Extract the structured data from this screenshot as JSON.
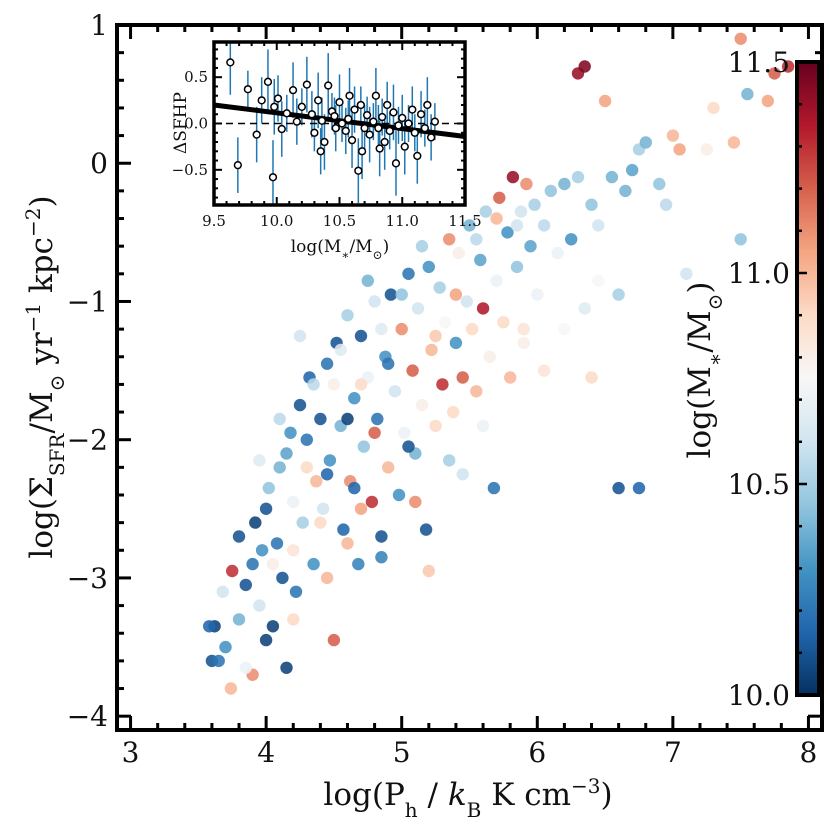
{
  "chart_data": [
    {
      "type": "scatter",
      "name": "main",
      "xlabel": "log(P_h / k_B K cm^-3)",
      "xlabel_parts": [
        "log(P",
        "h",
        " / ",
        "k",
        "B",
        " K cm",
        "−3",
        ")"
      ],
      "ylabel": "log(Σ_SFR/M⊙ yr^-1 kpc^-2)",
      "ylabel_parts": [
        "log(Σ",
        "SFR",
        "/M",
        "⊙",
        " yr",
        "−1",
        " kpc",
        "−2",
        ")"
      ],
      "xlim": [
        2.9,
        8.1
      ],
      "ylim": [
        -4.1,
        1.0
      ],
      "x_ticks": [
        3,
        4,
        5,
        6,
        7,
        8
      ],
      "y_ticks": [
        1,
        0,
        -1,
        -2,
        -3,
        -4
      ],
      "x_tick_labels": [
        "3",
        "4",
        "5",
        "6",
        "7",
        "8"
      ],
      "y_tick_labels": [
        "1",
        "0",
        "−1",
        "−2",
        "−3",
        "−4"
      ],
      "color_scale": {
        "min": 10.0,
        "max": 11.5,
        "colormap": "RdBu_r"
      },
      "points": [
        [
          3.6,
          -3.6,
          10.1
        ],
        [
          3.62,
          -3.35,
          10.05
        ],
        [
          3.65,
          -3.6,
          10.2
        ],
        [
          3.7,
          -3.5,
          10.3
        ],
        [
          3.74,
          -3.8,
          11.0
        ],
        [
          3.75,
          -2.95,
          11.3
        ],
        [
          3.8,
          -3.3,
          10.4
        ],
        [
          3.85,
          -3.05,
          10.1
        ],
        [
          3.9,
          -2.9,
          10.2
        ],
        [
          3.92,
          -2.6,
          10.05
        ],
        [
          3.95,
          -3.2,
          10.6
        ],
        [
          3.97,
          -2.8,
          10.3
        ],
        [
          4.0,
          -2.5,
          10.1
        ],
        [
          4.02,
          -2.35,
          10.45
        ],
        [
          4.05,
          -3.35,
          10.05
        ],
        [
          4.08,
          -2.75,
          10.2
        ],
        [
          4.1,
          -2.2,
          10.4
        ],
        [
          4.12,
          -3.0,
          10.1
        ],
        [
          4.15,
          -3.65,
          10.05
        ],
        [
          4.18,
          -1.95,
          10.3
        ],
        [
          4.2,
          -2.45,
          10.7
        ],
        [
          4.22,
          -3.1,
          10.2
        ],
        [
          4.25,
          -1.75,
          10.1
        ],
        [
          4.27,
          -2.6,
          10.5
        ],
        [
          4.3,
          -2.0,
          10.2
        ],
        [
          4.32,
          -1.55,
          10.15
        ],
        [
          4.35,
          -2.9,
          10.3
        ],
        [
          4.37,
          -2.3,
          11.0
        ],
        [
          4.4,
          -1.85,
          10.1
        ],
        [
          4.42,
          -2.5,
          10.6
        ],
        [
          4.45,
          -1.45,
          10.2
        ],
        [
          4.47,
          -2.15,
          10.3
        ],
        [
          4.5,
          -3.45,
          11.2
        ],
        [
          4.52,
          -1.3,
          10.1
        ],
        [
          4.55,
          -1.9,
          10.4
        ],
        [
          4.57,
          -2.65,
          10.15
        ],
        [
          4.6,
          -1.1,
          10.5
        ],
        [
          4.62,
          -2.3,
          11.1
        ],
        [
          4.65,
          -1.7,
          10.3
        ],
        [
          4.68,
          -2.9,
          10.25
        ],
        [
          4.7,
          -1.25,
          10.1
        ],
        [
          4.72,
          -2.05,
          10.45
        ],
        [
          4.75,
          -1.55,
          10.7
        ],
        [
          4.78,
          -2.45,
          11.3
        ],
        [
          4.8,
          -1.0,
          10.6
        ],
        [
          4.82,
          -1.85,
          10.2
        ],
        [
          4.85,
          -2.7,
          10.1
        ],
        [
          4.88,
          -1.4,
          10.3
        ],
        [
          4.9,
          -2.2,
          11.0
        ],
        [
          4.92,
          -0.95,
          10.1
        ],
        [
          4.95,
          -1.65,
          10.6
        ],
        [
          4.98,
          -2.4,
          10.3
        ],
        [
          5.0,
          -1.2,
          11.1
        ],
        [
          5.02,
          -1.95,
          10.7
        ],
        [
          5.05,
          -0.8,
          10.2
        ],
        [
          5.08,
          -1.5,
          11.2
        ],
        [
          5.1,
          -2.1,
          10.4
        ],
        [
          5.12,
          -1.05,
          10.6
        ],
        [
          5.15,
          -1.75,
          10.8
        ],
        [
          5.18,
          -2.65,
          10.1
        ],
        [
          5.2,
          -0.75,
          10.3
        ],
        [
          5.22,
          -1.35,
          11.0
        ],
        [
          5.25,
          -1.9,
          10.9
        ],
        [
          5.28,
          -0.9,
          10.5
        ],
        [
          5.3,
          -1.6,
          11.3
        ],
        [
          5.32,
          -1.15,
          10.75
        ],
        [
          5.35,
          -0.55,
          11.1
        ],
        [
          5.38,
          -1.8,
          10.9
        ],
        [
          5.4,
          -1.3,
          10.3
        ],
        [
          5.42,
          -0.65,
          10.8
        ],
        [
          5.45,
          -1.55,
          11.2
        ],
        [
          5.48,
          -1.0,
          10.6
        ],
        [
          5.5,
          -0.45,
          10.4
        ],
        [
          5.52,
          -1.2,
          10.9
        ],
        [
          5.55,
          -1.65,
          11.0
        ],
        [
          5.58,
          -0.7,
          10.35
        ],
        [
          5.6,
          -1.05,
          11.35
        ],
        [
          5.62,
          -0.35,
          10.5
        ],
        [
          5.65,
          -1.4,
          10.8
        ],
        [
          5.68,
          -2.35,
          10.2
        ],
        [
          5.7,
          -0.85,
          10.7
        ],
        [
          5.72,
          -0.25,
          11.2
        ],
        [
          5.75,
          -1.15,
          10.9
        ],
        [
          5.78,
          -0.5,
          10.3
        ],
        [
          5.8,
          -1.55,
          11.0
        ],
        [
          5.82,
          -0.1,
          11.4
        ],
        [
          5.85,
          -0.75,
          10.45
        ],
        [
          5.88,
          -0.35,
          10.6
        ],
        [
          5.9,
          -1.2,
          10.85
        ],
        [
          5.92,
          -0.15,
          11.1
        ],
        [
          5.95,
          -0.6,
          10.35
        ],
        [
          5.98,
          -0.3,
          10.5
        ],
        [
          6.0,
          -0.95,
          10.7
        ],
        [
          6.05,
          -0.45,
          10.55
        ],
        [
          6.1,
          -0.2,
          10.45
        ],
        [
          6.15,
          -0.65,
          10.7
        ],
        [
          6.2,
          -0.15,
          10.4
        ],
        [
          6.25,
          -0.55,
          10.3
        ],
        [
          6.3,
          -0.1,
          10.5
        ],
        [
          6.35,
          -1.05,
          10.65
        ],
        [
          6.4,
          -0.3,
          10.45
        ],
        [
          6.45,
          -0.45,
          10.6
        ],
        [
          6.5,
          0.45,
          11.05
        ],
        [
          6.55,
          -0.1,
          10.4
        ],
        [
          6.6,
          -0.95,
          10.5
        ],
        [
          6.65,
          -0.2,
          10.4
        ],
        [
          6.7,
          -0.05,
          10.35
        ],
        [
          6.75,
          0.1,
          10.5
        ],
        [
          6.8,
          0.15,
          10.4
        ],
        [
          6.9,
          -0.15,
          10.45
        ],
        [
          6.95,
          -0.3,
          10.55
        ],
        [
          7.0,
          0.2,
          11.0
        ],
        [
          7.05,
          0.1,
          11.05
        ],
        [
          7.1,
          -0.8,
          10.6
        ],
        [
          7.25,
          0.1,
          10.8
        ],
        [
          7.3,
          0.4,
          10.9
        ],
        [
          7.45,
          0.15,
          11.0
        ],
        [
          7.5,
          0.9,
          11.1
        ],
        [
          7.5,
          -0.55,
          10.45
        ],
        [
          7.7,
          0.45,
          11.05
        ],
        [
          7.75,
          0.65,
          11.2
        ],
        [
          7.85,
          0.7,
          11.3
        ],
        [
          7.55,
          0.5,
          10.4
        ],
        [
          6.3,
          0.65,
          11.4
        ],
        [
          6.35,
          0.7,
          11.45
        ],
        [
          6.6,
          -2.35,
          10.1
        ],
        [
          6.75,
          -2.35,
          10.15
        ],
        [
          3.9,
          -3.7,
          11.1
        ],
        [
          4.4,
          -2.6,
          10.9
        ],
        [
          4.6,
          -2.75,
          11.0
        ],
        [
          4.3,
          -2.2,
          10.9
        ],
        [
          4.5,
          -1.6,
          10.8
        ],
        [
          4.7,
          -2.5,
          11.05
        ],
        [
          4.8,
          -1.95,
          11.2
        ],
        [
          5.1,
          -2.45,
          11.1
        ],
        [
          4.2,
          -3.3,
          10.9
        ],
        [
          4.45,
          -3.0,
          11.0
        ],
        [
          5.2,
          -2.95,
          10.95
        ],
        [
          3.85,
          -3.65,
          10.7
        ],
        [
          4.05,
          -2.9,
          10.8
        ],
        [
          4.65,
          -2.35,
          10.15
        ],
        [
          4.9,
          -1.45,
          10.2
        ],
        [
          5.05,
          -2.05,
          10.1
        ],
        [
          4.35,
          -1.6,
          10.55
        ],
        [
          4.55,
          -1.35,
          10.65
        ],
        [
          5.6,
          -1.9,
          10.7
        ],
        [
          5.9,
          -1.3,
          10.8
        ],
        [
          6.05,
          -1.5,
          10.85
        ],
        [
          6.2,
          -1.2,
          10.75
        ],
        [
          6.4,
          -1.55,
          10.9
        ],
        [
          5.35,
          -2.15,
          10.5
        ],
        [
          4.15,
          -2.1,
          10.35
        ],
        [
          4.25,
          -1.25,
          10.6
        ],
        [
          4.75,
          -0.85,
          10.4
        ],
        [
          5.15,
          -0.6,
          10.5
        ],
        [
          3.95,
          -2.15,
          10.65
        ],
        [
          4.1,
          -1.85,
          10.55
        ],
        [
          4.85,
          -2.85,
          10.25
        ],
        [
          5.45,
          -2.25,
          10.6
        ],
        [
          6.45,
          -0.85,
          10.75
        ],
        [
          3.58,
          -3.35,
          10.15
        ],
        [
          3.68,
          -3.1,
          10.6
        ],
        [
          3.8,
          -2.7,
          10.1
        ],
        [
          4.0,
          -3.45,
          10.05
        ],
        [
          4.2,
          -2.8,
          10.85
        ],
        [
          4.45,
          -2.25,
          10.15
        ],
        [
          4.6,
          -1.85,
          10.05
        ],
        [
          4.7,
          -1.6,
          10.9
        ],
        [
          4.85,
          -1.2,
          10.65
        ],
        [
          5.0,
          -0.95,
          10.45
        ],
        [
          5.25,
          -1.25,
          10.95
        ],
        [
          5.4,
          -0.95,
          11.05
        ],
        [
          5.55,
          -0.55,
          10.55
        ],
        [
          5.7,
          -0.4,
          11.0
        ],
        [
          5.85,
          -0.45,
          10.6
        ]
      ]
    },
    {
      "type": "scatter",
      "name": "inset",
      "xlabel": "log(M∗/M⊙)",
      "xlabel_parts": [
        "log(M",
        "∗",
        "/M",
        "⊙",
        ")"
      ],
      "ylabel": "ΔSFHP",
      "xlim": [
        9.5,
        11.5
      ],
      "ylim": [
        -0.88,
        0.88
      ],
      "x_ticks": [
        9.5,
        10.0,
        10.5,
        11.0,
        11.5
      ],
      "y_ticks": [
        0.5,
        0.0,
        -0.5
      ],
      "x_tick_labels": [
        "9.5",
        "10.0",
        "10.5",
        "11.0",
        "11.5"
      ],
      "y_tick_labels": [
        "0.5",
        "0.0",
        "−0.5"
      ],
      "fit_line": {
        "x": [
          9.5,
          11.5
        ],
        "y": [
          0.2,
          -0.14
        ]
      },
      "zero_line_y": 0.0,
      "points": [
        [
          9.63,
          0.66,
          0.35
        ],
        [
          9.69,
          -0.45,
          0.3
        ],
        [
          9.77,
          0.37,
          0.2
        ],
        [
          9.84,
          -0.12,
          0.3
        ],
        [
          9.88,
          0.25,
          0.25
        ],
        [
          9.93,
          0.45,
          0.35
        ],
        [
          9.97,
          -0.58,
          0.4
        ],
        [
          9.98,
          0.18,
          0.3
        ],
        [
          10.01,
          0.27,
          0.25
        ],
        [
          10.04,
          -0.06,
          0.3
        ],
        [
          10.08,
          0.11,
          0.2
        ],
        [
          10.13,
          0.36,
          0.3
        ],
        [
          10.16,
          0.02,
          0.25
        ],
        [
          10.2,
          0.18,
          0.2
        ],
        [
          10.24,
          0.42,
          0.3
        ],
        [
          10.28,
          0.1,
          0.25
        ],
        [
          10.3,
          -0.1,
          0.2
        ],
        [
          10.33,
          0.25,
          0.3
        ],
        [
          10.36,
          0.03,
          0.25
        ],
        [
          10.38,
          -0.2,
          0.3
        ],
        [
          10.41,
          0.41,
          0.35
        ],
        [
          10.44,
          0.13,
          0.2
        ],
        [
          10.47,
          -0.05,
          0.25
        ],
        [
          10.5,
          0.23,
          0.3
        ],
        [
          10.52,
          0.0,
          0.2
        ],
        [
          10.55,
          -0.08,
          0.25
        ],
        [
          10.57,
          0.05,
          0.2
        ],
        [
          10.6,
          -0.18,
          0.3
        ],
        [
          10.62,
          0.15,
          0.25
        ],
        [
          10.65,
          -0.51,
          0.35
        ],
        [
          10.67,
          0.2,
          0.2
        ],
        [
          10.7,
          -0.05,
          0.25
        ],
        [
          10.72,
          0.09,
          0.2
        ],
        [
          10.74,
          -0.12,
          0.3
        ],
        [
          10.77,
          0.02,
          0.2
        ],
        [
          10.79,
          0.3,
          0.3
        ],
        [
          10.81,
          -0.05,
          0.25
        ],
        [
          10.84,
          0.07,
          0.2
        ],
        [
          10.86,
          -0.2,
          0.3
        ],
        [
          10.88,
          0.2,
          0.25
        ],
        [
          10.9,
          -0.08,
          0.2
        ],
        [
          10.93,
          0.12,
          0.3
        ],
        [
          10.95,
          -0.43,
          0.35
        ],
        [
          10.97,
          -0.02,
          0.2
        ],
        [
          11.0,
          0.06,
          0.25
        ],
        [
          11.02,
          -0.25,
          0.3
        ],
        [
          11.05,
          0.0,
          0.2
        ],
        [
          11.08,
          0.15,
          0.25
        ],
        [
          11.1,
          -0.1,
          0.2
        ],
        [
          11.12,
          -0.35,
          0.3
        ],
        [
          11.15,
          0.1,
          0.25
        ],
        [
          11.18,
          -0.05,
          0.2
        ],
        [
          11.2,
          0.2,
          0.3
        ],
        [
          11.23,
          -0.15,
          0.25
        ],
        [
          11.26,
          0.02,
          0.2
        ],
        [
          10.35,
          -0.3,
          0.25
        ],
        [
          10.46,
          0.08,
          0.2
        ],
        [
          10.58,
          0.3,
          0.3
        ],
        [
          10.68,
          -0.3,
          0.3
        ],
        [
          10.82,
          -0.27,
          0.3
        ]
      ]
    },
    {
      "type": "colorbar",
      "name": "colorbar",
      "label": "log(M∗/M⊙)",
      "label_parts": [
        "log(M",
        "∗",
        "/M",
        "⊙",
        ")"
      ],
      "range": [
        10.0,
        11.5
      ],
      "ticks": [
        10.0,
        10.5,
        11.0,
        11.5
      ],
      "tick_labels": [
        "10.0",
        "10.5",
        "11.0",
        "11.5"
      ],
      "stops": [
        "#053061",
        "#2166ac",
        "#4393c3",
        "#92c5de",
        "#d1e5f0",
        "#f7f7f7",
        "#fddbc7",
        "#f4a582",
        "#d6604d",
        "#b2182b",
        "#67001f"
      ]
    }
  ]
}
